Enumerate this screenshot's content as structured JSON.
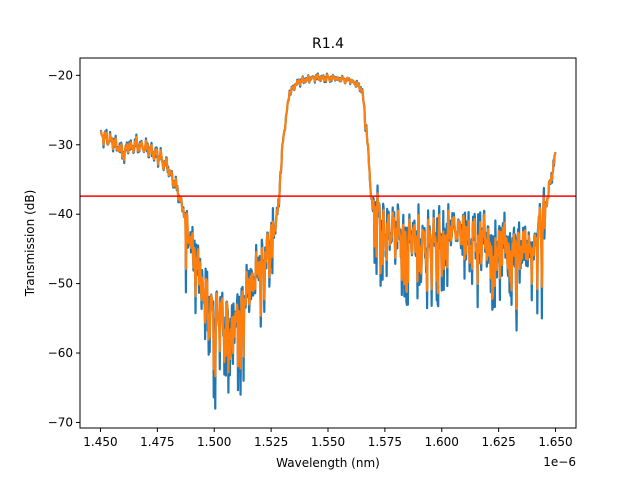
{
  "chart_data": {
    "type": "line",
    "title": "R1.4",
    "xlabel": "Wavelength (nm)",
    "ylabel": "Transmission (dB)",
    "x_offset_text": "1e−6",
    "xlim": [
      1.441e-06,
      1.659e-06
    ],
    "ylim": [
      -70.8,
      -17.5
    ],
    "x_ticks": [
      {
        "value": 1.45e-06,
        "label": "1.450"
      },
      {
        "value": 1.475e-06,
        "label": "1.475"
      },
      {
        "value": 1.5e-06,
        "label": "1.500"
      },
      {
        "value": 1.525e-06,
        "label": "1.525"
      },
      {
        "value": 1.55e-06,
        "label": "1.550"
      },
      {
        "value": 1.575e-06,
        "label": "1.575"
      },
      {
        "value": 1.6e-06,
        "label": "1.600"
      },
      {
        "value": 1.625e-06,
        "label": "1.625"
      },
      {
        "value": 1.65e-06,
        "label": "1.650"
      }
    ],
    "y_ticks": [
      {
        "value": -20,
        "label": "−20"
      },
      {
        "value": -30,
        "label": "−30"
      },
      {
        "value": -40,
        "label": "−40"
      },
      {
        "value": -50,
        "label": "−50"
      },
      {
        "value": -60,
        "label": "−60"
      },
      {
        "value": -70,
        "label": "−70"
      }
    ],
    "grid": false,
    "legend": "none",
    "threshold": {
      "y": -37.4,
      "color": "#ff0000"
    },
    "series": [
      {
        "color": "#1f77b4",
        "envelope_x": [
          1.45e-06,
          1.455e-06,
          1.458e-06,
          1.46e-06,
          1.462e-06,
          1.465e-06,
          1.47e-06,
          1.475e-06,
          1.48e-06,
          1.485e-06,
          1.49e-06,
          1.495e-06,
          1.5e-06,
          1.505e-06,
          1.51e-06,
          1.515e-06,
          1.52e-06,
          1.525e-06,
          1.528e-06,
          1.53e-06,
          1.533e-06,
          1.537e-06,
          1.545e-06,
          1.555e-06,
          1.562e-06,
          1.565e-06,
          1.567e-06,
          1.569e-06,
          1.575e-06,
          1.585e-06,
          1.595e-06,
          1.605e-06,
          1.615e-06,
          1.625e-06,
          1.635e-06,
          1.64e-06,
          1.645e-06,
          1.648e-06,
          1.65e-06
        ],
        "envelope_y": [
          -28.8,
          -29.5,
          -30.5,
          -31.5,
          -30.2,
          -30.0,
          -30.5,
          -31.5,
          -33.5,
          -37.5,
          -44.0,
          -50.0,
          -54.0,
          -55.0,
          -54.0,
          -51.0,
          -47.0,
          -44.0,
          -40.0,
          -30.0,
          -22.5,
          -21.0,
          -20.3,
          -20.5,
          -21.0,
          -22.0,
          -28.0,
          -37.5,
          -42.0,
          -43.0,
          -44.0,
          -42.0,
          -43.0,
          -44.0,
          -44.5,
          -45.0,
          -40.0,
          -35.0,
          -31.5
        ],
        "noise_amplitude_dB": 4.0,
        "minima_dB": [
          -68.0,
          -66.0,
          -64.0,
          -58.0,
          -55.0,
          -51.0
        ]
      },
      {
        "color": "#ff7f0e",
        "note_same_shape": true,
        "noise_amplitude_dB": 3.5
      }
    ]
  }
}
